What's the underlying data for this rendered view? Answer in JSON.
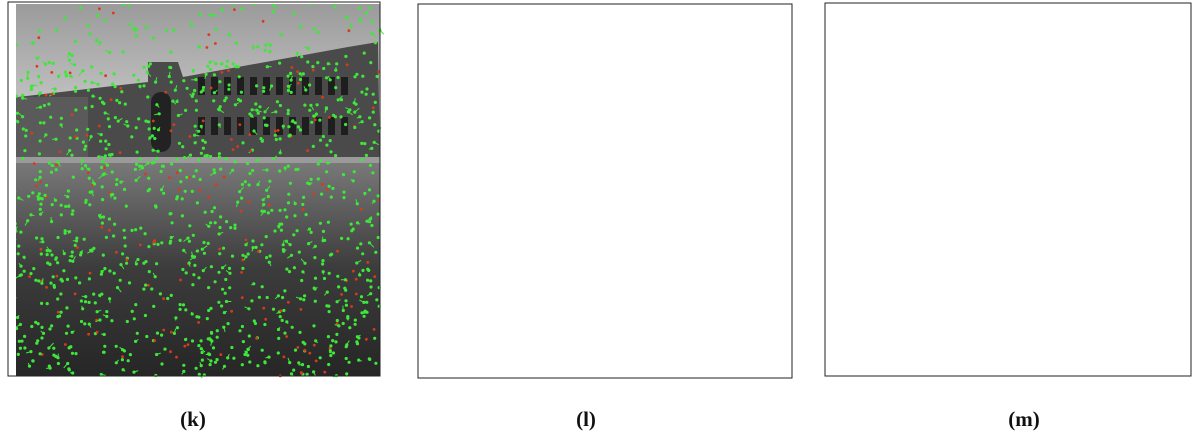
{
  "panels": [
    {
      "label": "(k)"
    },
    {
      "label": "(l)"
    },
    {
      "label": "(m)"
    }
  ]
}
